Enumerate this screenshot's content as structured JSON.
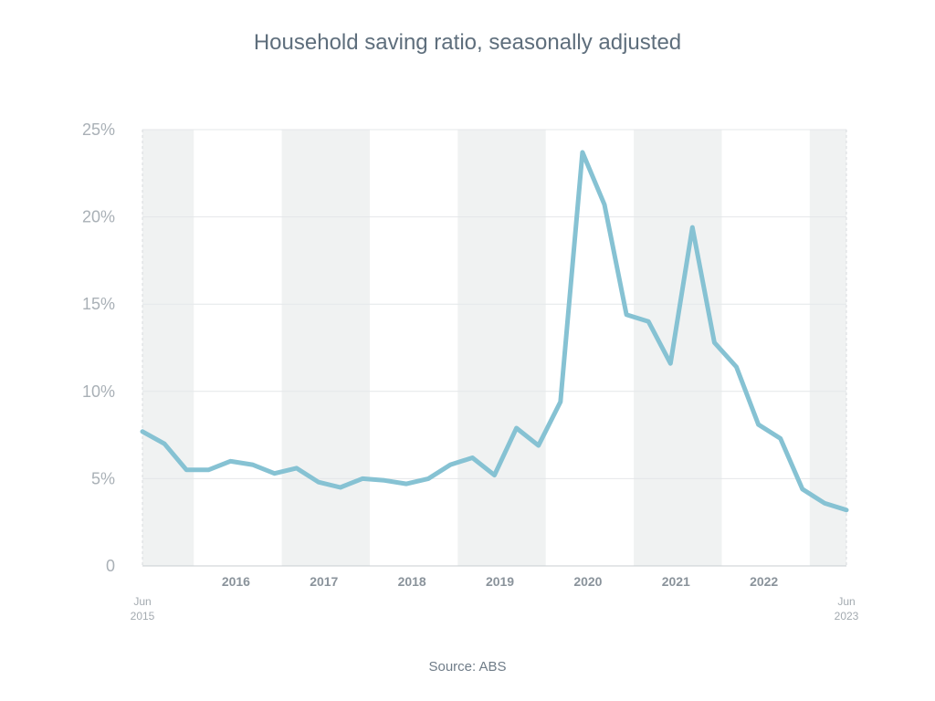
{
  "title": "Household saving ratio, seasonally adjusted",
  "source": "Source: ABS",
  "colors": {
    "line": "#86c2d3",
    "band": "#f0f2f2",
    "grid": "#e4e7e9",
    "tick_text": "#a9b0b6"
  },
  "chart_data": {
    "type": "line",
    "title": "Household saving ratio, seasonally adjusted",
    "xlabel": "",
    "ylabel": "",
    "ylim": [
      0,
      25
    ],
    "yticks": [
      {
        "value": 0,
        "label": "0"
      },
      {
        "value": 5,
        "label": "5%"
      },
      {
        "value": 10,
        "label": "10%"
      },
      {
        "value": 15,
        "label": "15%"
      },
      {
        "value": 20,
        "label": "20%"
      },
      {
        "value": 25,
        "label": "25%"
      }
    ],
    "xrange": [
      "2015-06",
      "2023-06"
    ],
    "xtick_labels": [
      "2016",
      "2017",
      "2018",
      "2019",
      "2020",
      "2021",
      "2022"
    ],
    "x_edge_labels": {
      "start": [
        "Jun",
        "2015"
      ],
      "end": [
        "Jun",
        "2023"
      ]
    },
    "shaded_periods": [
      [
        "2015-06",
        "2016-01"
      ],
      [
        "2017-01",
        "2018-01"
      ],
      [
        "2019-01",
        "2020-01"
      ],
      [
        "2021-01",
        "2022-01"
      ],
      [
        "2023-01",
        "2023-06"
      ]
    ],
    "grid": true,
    "series": [
      {
        "x": [
          "2015-06",
          "2015-09",
          "2015-12",
          "2016-03",
          "2016-06",
          "2016-09",
          "2016-12",
          "2017-03",
          "2017-06",
          "2017-09",
          "2017-12",
          "2018-03",
          "2018-06",
          "2018-09",
          "2018-12",
          "2019-03",
          "2019-06",
          "2019-09",
          "2019-12",
          "2020-03",
          "2020-06",
          "2020-09",
          "2020-12",
          "2021-03",
          "2021-06",
          "2021-09",
          "2021-12",
          "2022-03",
          "2022-06",
          "2022-09",
          "2022-12",
          "2023-03",
          "2023-06"
        ],
        "values": [
          7.7,
          7.0,
          5.5,
          5.5,
          6.0,
          5.8,
          5.3,
          5.6,
          4.8,
          4.5,
          5.0,
          4.9,
          4.7,
          5.0,
          5.8,
          6.2,
          5.2,
          7.9,
          6.9,
          9.4,
          23.7,
          20.7,
          14.4,
          14.0,
          11.6,
          19.4,
          12.8,
          11.4,
          8.1,
          7.3,
          4.4,
          3.6,
          3.2
        ]
      }
    ]
  }
}
